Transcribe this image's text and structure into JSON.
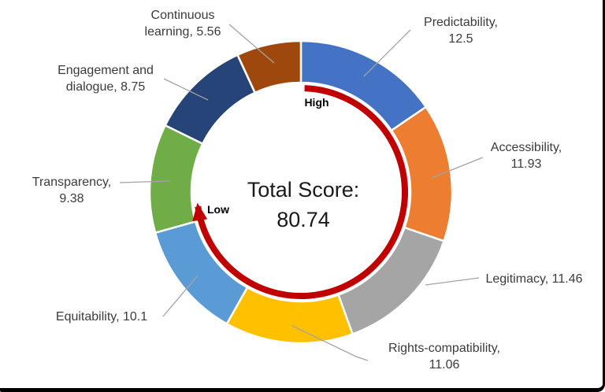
{
  "chart_data": {
    "type": "pie",
    "subtype": "donut-gauge",
    "direction": "clockwise",
    "start_position": "top",
    "total": 80.74,
    "center_label": {
      "line1": "Total Score:",
      "line2": "80.74"
    },
    "segments": [
      {
        "name": "Predictability",
        "value": 12.5,
        "color": "#4472C4",
        "label_lines": [
          "Predictability,",
          "12.5"
        ]
      },
      {
        "name": "Accessibility",
        "value": 11.93,
        "color": "#ED7D31",
        "label_lines": [
          "Accessibility,",
          "11.93"
        ]
      },
      {
        "name": "Legitimacy",
        "value": 11.46,
        "color": "#A5A5A5",
        "label_lines": [
          "Legitimacy, 11.46"
        ]
      },
      {
        "name": "Rights-compatibility",
        "value": 11.06,
        "color": "#FFC000",
        "label_lines": [
          "Rights-compatibility,",
          "11.06"
        ]
      },
      {
        "name": "Equitability",
        "value": 10.1,
        "color": "#5B9BD5",
        "label_lines": [
          "Equitability, 10.1"
        ]
      },
      {
        "name": "Transparency",
        "value": 9.38,
        "color": "#70AD47",
        "label_lines": [
          "Transparency,",
          "9.38"
        ]
      },
      {
        "name": "Engagement and dialogue",
        "value": 8.75,
        "color": "#264478",
        "label_lines": [
          "Engagement and",
          "dialogue, 8.75"
        ]
      },
      {
        "name": "Continuous learning",
        "value": 5.56,
        "color": "#9E480E",
        "label_lines": [
          "Continuous",
          "learning, 5.56"
        ]
      }
    ],
    "separator_color": "#ffffff",
    "leader_line_color": "#a3a3a3",
    "gauge_arrow": {
      "color": "#C00000",
      "start_label": "High",
      "end_label": "Low"
    }
  }
}
